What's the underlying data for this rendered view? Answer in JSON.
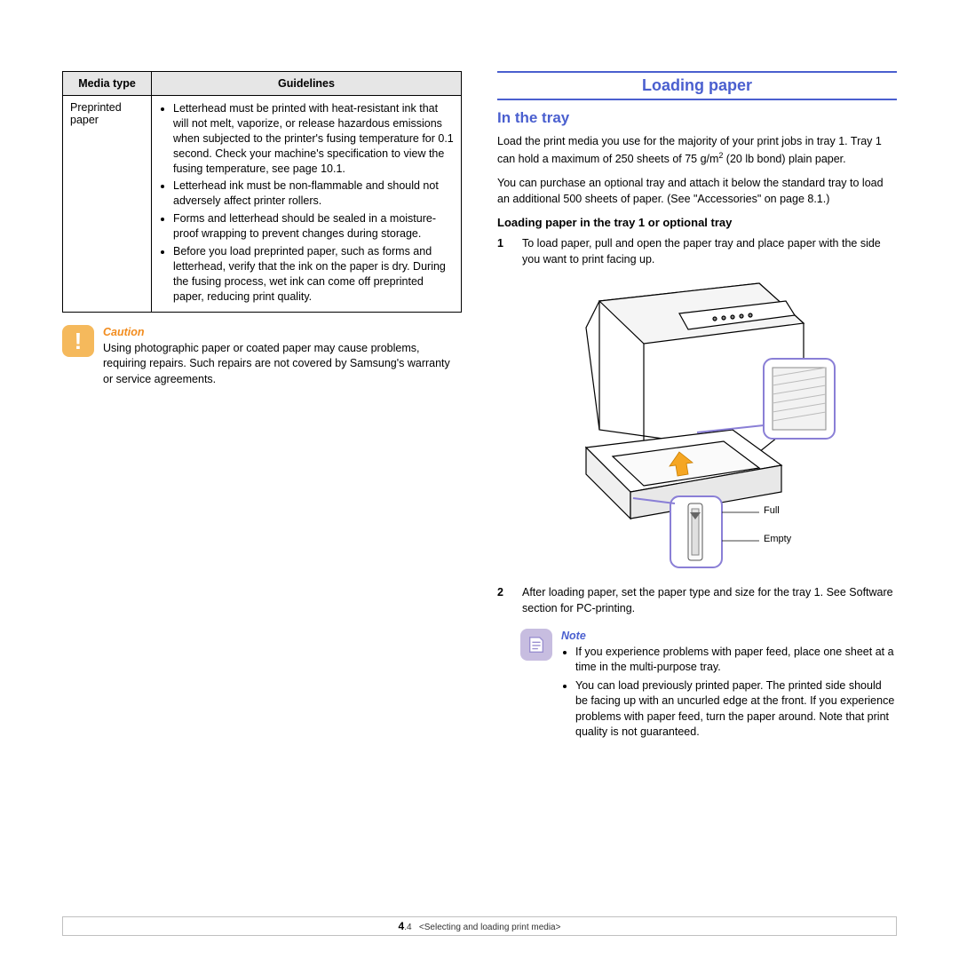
{
  "colors": {
    "accent_blue": "#4a5fcf",
    "caution_orange_text": "#f28c1e",
    "caution_icon_bg": "#f5b95c",
    "note_icon_bg": "#c7bde0",
    "table_header_bg": "#e6e6e6",
    "border": "#000000",
    "footer_border": "#c0c0c0",
    "body_text": "#000000",
    "page_bg": "#ffffff"
  },
  "typography": {
    "body_pt": 12.5,
    "section_title_pt": 18,
    "subhead_pt": 17,
    "sub2_pt": 13,
    "footer_pt": 10,
    "fig_label_pt": 11,
    "font_family": "Arial"
  },
  "left": {
    "table": {
      "headers": [
        "Media type",
        "Guidelines"
      ],
      "row": {
        "media_type": "Preprinted paper",
        "bullets": [
          "Letterhead must be printed with heat-resistant ink that will not melt, vaporize, or release hazardous emissions when subjected to the printer's fusing temperature for 0.1 second. Check your machine's specification to view the fusing temperature, see page 10.1.",
          "Letterhead ink must be non-flammable and should not adversely affect printer rollers.",
          "Forms and letterhead should be sealed in a moisture-proof wrapping to prevent changes during storage.",
          "Before you load preprinted paper, such as forms and letterhead, verify that the ink on the paper is dry. During the fusing process, wet ink can come off preprinted paper, reducing print quality."
        ]
      }
    },
    "caution": {
      "label": "Caution",
      "text": "Using photographic paper or coated paper may cause problems, requiring repairs. Such repairs are not covered by Samsung's warranty or service agreements."
    }
  },
  "right": {
    "section_title": "Loading paper",
    "subhead": "In the tray",
    "para1_html": "Load the print media you use for the majority of your print jobs in tray 1. Tray 1 can hold a maximum of 250 sheets of 75 g/m<sup>2</sup> (20 lb bond) plain paper.",
    "para2": "You can purchase an optional tray and attach it below the standard tray to load an additional 500 sheets of paper. (See \"Accessories\" on page 8.1.)",
    "sub2": "Loading paper in the tray 1 or optional tray",
    "steps": [
      {
        "n": "1",
        "text": "To load paper, pull and open the paper tray and place paper with the side you want to print facing up."
      },
      {
        "n": "2",
        "text": "After loading paper, set the paper type and size for the tray 1. See Software section for PC-printing."
      }
    ],
    "figure": {
      "labels": {
        "full": "Full",
        "empty": "Empty"
      },
      "inset_border": "#8a7fd6",
      "arrow_fill": "#f5a623"
    },
    "note": {
      "label": "Note",
      "bullets": [
        "If you experience problems with paper feed, place one sheet at a time in the multi-purpose tray.",
        "You can load previously printed paper. The printed side should be facing up with an uncurled edge at the front. If you experience problems with paper feed, turn the paper around. Note that print quality is not guaranteed."
      ]
    }
  },
  "footer": {
    "page_num_bold": "4",
    "page_num_light": ".4",
    "chapter": "<Selecting and loading print media>"
  }
}
